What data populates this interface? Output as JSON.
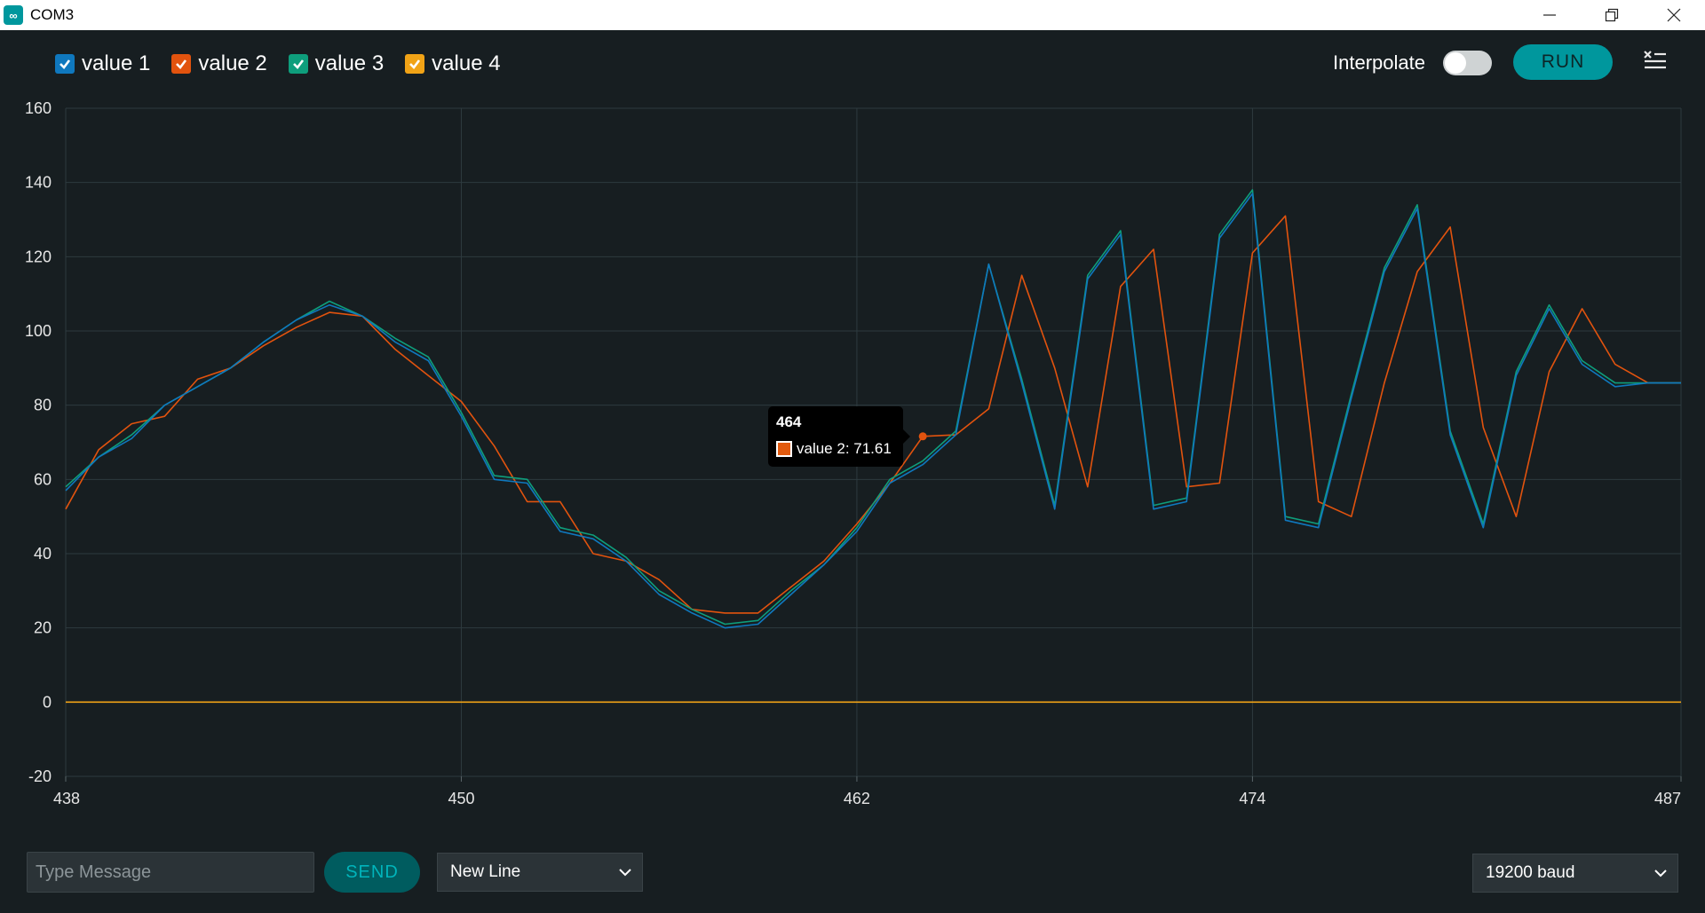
{
  "window": {
    "title": "COM3",
    "app_icon": "arduino-infinity-icon"
  },
  "legend": {
    "items": [
      {
        "label": "value 1",
        "color": "#0f78be",
        "checked": true
      },
      {
        "label": "value 2",
        "color": "#e2530e",
        "checked": true
      },
      {
        "label": "value 3",
        "color": "#0e9e7c",
        "checked": true
      },
      {
        "label": "value 4",
        "color": "#f1a316",
        "checked": true
      }
    ]
  },
  "toolbar": {
    "interpolate_label": "Interpolate",
    "interpolate_on": false,
    "run_label": "RUN",
    "clear_icon": "clear-list-icon"
  },
  "tooltip": {
    "title": "464",
    "series": "value 2",
    "value": "71.61",
    "text": "value 2: 71.61"
  },
  "bottom": {
    "message_placeholder": "Type Message",
    "message_value": "",
    "send_label": "SEND",
    "line_ending": "New Line",
    "baud": "19200 baud"
  },
  "chart_data": {
    "type": "line",
    "xlim": [
      438,
      487
    ],
    "ylim": [
      -20,
      160
    ],
    "x_ticks": [
      438,
      450,
      462,
      474,
      487
    ],
    "y_ticks": [
      -20,
      0,
      20,
      40,
      60,
      80,
      100,
      120,
      140,
      160
    ],
    "grid": true,
    "x": [
      438,
      439,
      440,
      441,
      442,
      443,
      444,
      445,
      446,
      447,
      448,
      449,
      450,
      451,
      452,
      453,
      454,
      455,
      456,
      457,
      458,
      459,
      460,
      461,
      462,
      463,
      464,
      465,
      466,
      467,
      468,
      469,
      470,
      471,
      472,
      473,
      474,
      475,
      476,
      477,
      478,
      479,
      480,
      481,
      482,
      483,
      484,
      485,
      486,
      487
    ],
    "series": [
      {
        "name": "value 1",
        "color": "#0f78be",
        "values": [
          57,
          66,
          71,
          80,
          85,
          90,
          97,
          103,
          107,
          104,
          97,
          92,
          77,
          60,
          59,
          46,
          44,
          38,
          29,
          24,
          20,
          21,
          29,
          37,
          46,
          59,
          64,
          72,
          118,
          86,
          52,
          114,
          126,
          52,
          54,
          125,
          137,
          49,
          47,
          82,
          116,
          133,
          72,
          47,
          88,
          106,
          91,
          85,
          86,
          86
        ]
      },
      {
        "name": "value 2",
        "color": "#e2530e",
        "values": [
          52,
          68,
          75,
          77,
          87,
          90,
          96,
          101,
          105,
          104,
          95,
          88,
          81,
          69,
          54,
          54,
          40,
          38,
          33,
          25,
          24,
          24,
          31,
          38,
          48,
          59,
          71.61,
          72,
          79,
          115,
          90,
          58,
          112,
          122,
          58,
          59,
          121,
          131,
          54,
          50,
          86,
          116,
          128,
          74,
          50,
          89,
          106,
          91,
          86,
          86
        ]
      },
      {
        "name": "value 3",
        "color": "#0e9e7c",
        "values": [
          58,
          66,
          72,
          80,
          85,
          90,
          97,
          103,
          108,
          104,
          98,
          93,
          78,
          61,
          60,
          47,
          45,
          39,
          30,
          25,
          21,
          22,
          30,
          37,
          47,
          60,
          65,
          73,
          118,
          87,
          53,
          115,
          127,
          53,
          55,
          126,
          138,
          50,
          48,
          83,
          117,
          134,
          73,
          48,
          89,
          107,
          92,
          86,
          86,
          86
        ]
      },
      {
        "name": "value 4",
        "color": "#f1a316",
        "values": [
          0,
          0,
          0,
          0,
          0,
          0,
          0,
          0,
          0,
          0,
          0,
          0,
          0,
          0,
          0,
          0,
          0,
          0,
          0,
          0,
          0,
          0,
          0,
          0,
          0,
          0,
          0,
          0,
          0,
          0,
          0,
          0,
          0,
          0,
          0,
          0,
          0,
          0,
          0,
          0,
          0,
          0,
          0,
          0,
          0,
          0,
          0,
          0,
          0,
          0
        ]
      }
    ],
    "highlight": {
      "series": "value 2",
      "x": 464,
      "y": 71.61
    }
  }
}
